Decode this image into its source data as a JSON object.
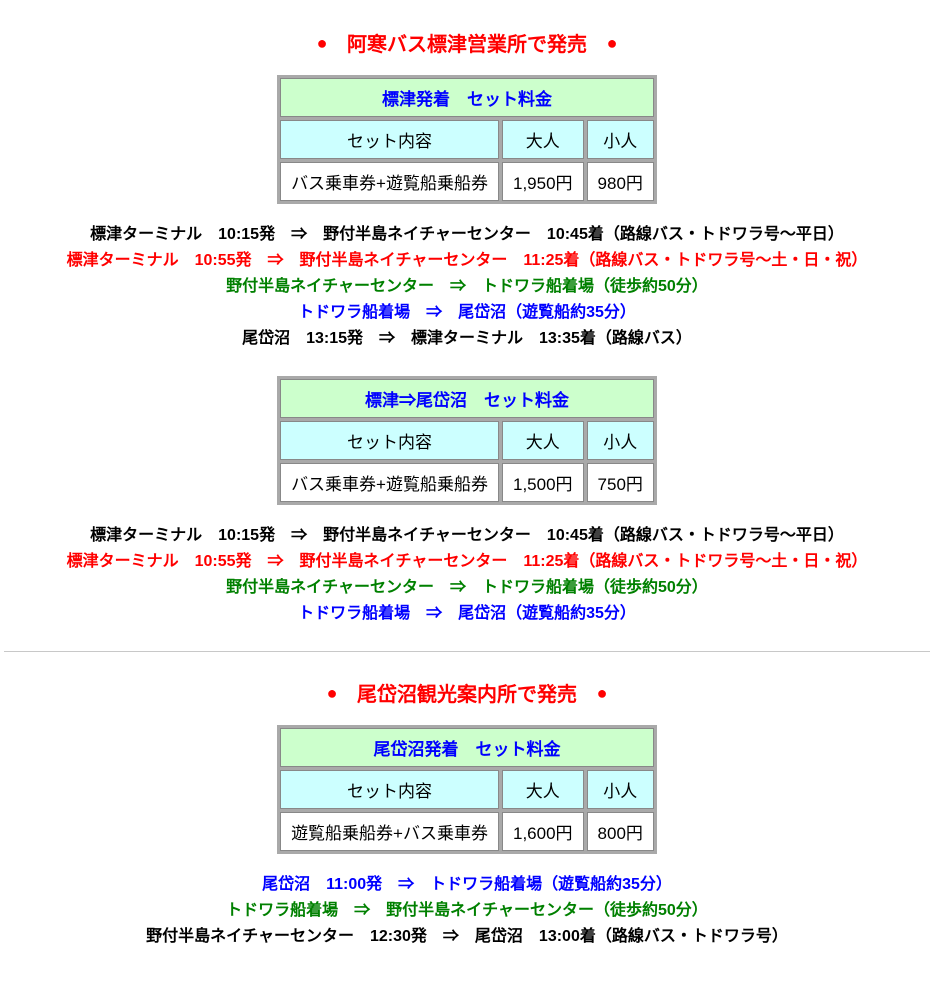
{
  "colors": {
    "heading": "#ff0000",
    "table_title_bg": "#ccffcc",
    "table_title_fg": "#0000ff",
    "table_header_bg": "#ccffff",
    "table_header_fg": "#000000",
    "table_data_bg": "#ffffff",
    "black": "#000000",
    "red": "#ff0000",
    "green": "#008000",
    "blue": "#0000ff"
  },
  "section1": {
    "heading": "阿寒バス標津営業所で発売",
    "table1": {
      "title": "標津発着　セット料金",
      "headers": [
        "セット内容",
        "大人",
        "小人"
      ],
      "row": [
        "バス乗車券+遊覧船乗船券",
        "1,950円",
        "980円"
      ]
    },
    "schedule1": [
      {
        "color": "black",
        "text": "標津ターミナル　10:15発　⇒　野付半島ネイチャーセンター　10:45着（路線バス・トドワラ号〜平日）"
      },
      {
        "color": "red",
        "text": "標津ターミナル　10:55発　⇒　野付半島ネイチャーセンター　11:25着（路線バス・トドワラ号〜土・日・祝）"
      },
      {
        "color": "green",
        "text": "野付半島ネイチャーセンター　⇒　トドワラ船着場（徒歩約50分）"
      },
      {
        "color": "blue",
        "text": "トドワラ船着場　⇒　尾岱沼（遊覧船約35分）"
      },
      {
        "color": "black",
        "text": "尾岱沼　13:15発　⇒　標津ターミナル　13:35着（路線バス）"
      }
    ],
    "table2": {
      "title": "標津⇒尾岱沼　セット料金",
      "headers": [
        "セット内容",
        "大人",
        "小人"
      ],
      "row": [
        "バス乗車券+遊覧船乗船券",
        "1,500円",
        "750円"
      ]
    },
    "schedule2": [
      {
        "color": "black",
        "text": "標津ターミナル　10:15発　⇒　野付半島ネイチャーセンター　10:45着（路線バス・トドワラ号〜平日）"
      },
      {
        "color": "red",
        "text": "標津ターミナル　10:55発　⇒　野付半島ネイチャーセンター　11:25着（路線バス・トドワラ号〜土・日・祝）"
      },
      {
        "color": "green",
        "text": "野付半島ネイチャーセンター　⇒　トドワラ船着場（徒歩約50分）"
      },
      {
        "color": "blue",
        "text": "トドワラ船着場　⇒　尾岱沼（遊覧船約35分）"
      }
    ]
  },
  "section2": {
    "heading": "尾岱沼観光案内所で発売",
    "table1": {
      "title": "尾岱沼発着　セット料金",
      "headers": [
        "セット内容",
        "大人",
        "小人"
      ],
      "row": [
        "遊覧船乗船券+バス乗車券",
        "1,600円",
        "800円"
      ]
    },
    "schedule1": [
      {
        "color": "blue",
        "text": "尾岱沼　11:00発　⇒　トドワラ船着場（遊覧船約35分）"
      },
      {
        "color": "green",
        "text": "トドワラ船着場　⇒　野付半島ネイチャーセンター（徒歩約50分）"
      },
      {
        "color": "black",
        "text": "野付半島ネイチャーセンター　12:30発　⇒　尾岱沼　13:00着（路線バス・トドワラ号）"
      }
    ]
  }
}
